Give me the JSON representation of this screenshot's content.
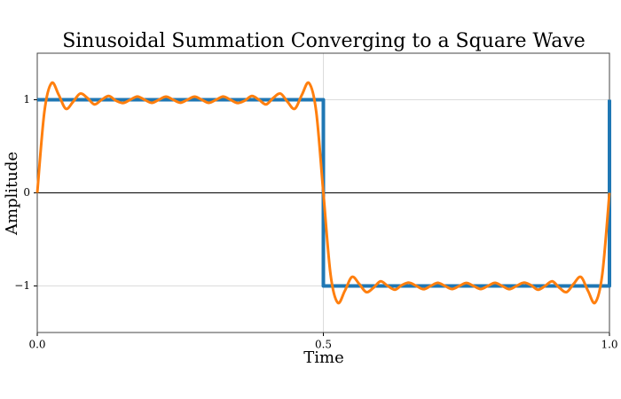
{
  "chart_data": {
    "type": "line",
    "title": "Sinusoidal Summation Converging to a Square Wave",
    "xlabel": "Time",
    "ylabel": "Amplitude",
    "xlim": [
      0,
      1
    ],
    "ylim": [
      -1.5,
      1.5
    ],
    "xticks": [
      {
        "value": 0,
        "label": "0.0"
      },
      {
        "value": 0.5,
        "label": "0.5"
      },
      {
        "value": 1,
        "label": "1.0"
      }
    ],
    "yticks": [
      {
        "value": -1,
        "label": "−1"
      },
      0,
      1
    ],
    "grid": true,
    "zero_line": true,
    "series": [
      {
        "color": "#1f77b4",
        "width": 4,
        "smooth": false,
        "x": [
          0,
          0.5,
          0.5,
          1,
          1
        ],
        "values": [
          1,
          1,
          -1,
          -1,
          1
        ]
      },
      {
        "color": "#ff7f0e",
        "width": 3,
        "smooth": true,
        "x": [
          0,
          0.0125,
          0.025,
          0.0375,
          0.05,
          0.0625,
          0.075,
          0.0875,
          0.1,
          0.1125,
          0.125,
          0.1375,
          0.15,
          0.1625,
          0.175,
          0.1875,
          0.2,
          0.2125,
          0.225,
          0.2375,
          0.25,
          0.2625,
          0.275,
          0.2875,
          0.3,
          0.3125,
          0.325,
          0.3375,
          0.35,
          0.3625,
          0.375,
          0.3875,
          0.4,
          0.4125,
          0.425,
          0.4375,
          0.45,
          0.4625,
          0.475,
          0.4875,
          0.5,
          0.5125,
          0.525,
          0.5375,
          0.55,
          0.5625,
          0.575,
          0.5875,
          0.6,
          0.6125,
          0.625,
          0.6375,
          0.65,
          0.6625,
          0.675,
          0.6875,
          0.7,
          0.7125,
          0.725,
          0.7375,
          0.75,
          0.7625,
          0.775,
          0.7875,
          0.8,
          0.8125,
          0.825,
          0.8375,
          0.85,
          0.8625,
          0.875,
          0.8875,
          0.9,
          0.9125,
          0.925,
          0.9375,
          0.95,
          0.9625,
          0.975,
          0.9875,
          1
        ],
        "values": [
          0,
          0.873,
          1.179,
          1.053,
          0.903,
          0.977,
          1.066,
          1.02,
          0.95,
          1.0,
          1.04,
          0.99,
          0.965,
          1.0,
          1.035,
          1.0,
          0.967,
          1.0,
          1.033,
          1.0,
          0.968,
          1.0,
          1.033,
          1.0,
          0.967,
          1.0,
          1.035,
          1.0,
          0.965,
          0.99,
          1.04,
          1.0,
          0.95,
          1.02,
          1.066,
          0.977,
          0.903,
          1.053,
          1.179,
          0.873,
          0,
          -0.873,
          -1.179,
          -1.053,
          -0.903,
          -0.977,
          -1.066,
          -1.02,
          -0.95,
          -1.0,
          -1.04,
          -0.99,
          -0.965,
          -1.0,
          -1.035,
          -1.0,
          -0.967,
          -1.0,
          -1.033,
          -1.0,
          -0.968,
          -1.0,
          -1.033,
          -1.0,
          -0.967,
          -1.0,
          -1.035,
          -1.0,
          -0.965,
          -0.99,
          -1.04,
          -1.0,
          -0.95,
          -1.02,
          -1.066,
          -0.977,
          -0.903,
          -1.053,
          -1.179,
          -0.873,
          0
        ]
      }
    ]
  }
}
